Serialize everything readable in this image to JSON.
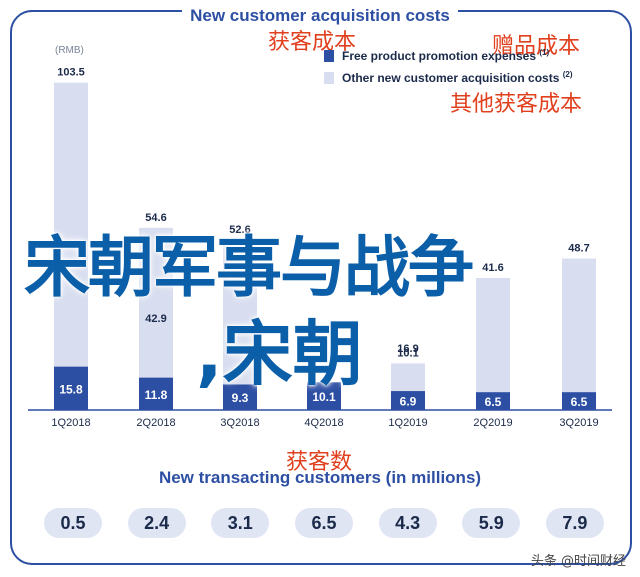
{
  "title": "New customer acquisition costs",
  "labels_cn": {
    "acq_cost": "获客成本",
    "gift_cost": "赠品成本",
    "other_cost": "其他获客成本",
    "customers": "获客数"
  },
  "unit": "(RMB)",
  "legend": [
    {
      "label": "Free product promotion expenses",
      "sup": "(1)",
      "color": "#2d4fa3"
    },
    {
      "label": "Other new customer acquisition costs",
      "sup": "(2)",
      "color": "#d8def0"
    }
  ],
  "overlay": {
    "line1": "宋朝军事与战争",
    "line2": ",宋朝"
  },
  "chart_data": {
    "type": "bar",
    "categories": [
      "1Q2018",
      "2Q2018",
      "3Q2018",
      "4Q2018",
      "1Q2019",
      "2Q2019",
      "3Q2019"
    ],
    "series": [
      {
        "name": "Free product promotion expenses",
        "values": [
          15.8,
          11.8,
          9.3,
          10.1,
          6.9,
          6.5,
          6.5
        ]
      },
      {
        "name": "Other new customer acquisition costs",
        "values": [
          103.5,
          54.6,
          52.6,
          null,
          10.1,
          41.6,
          48.7
        ]
      }
    ],
    "total_labels": [
      "103.5",
      "54.6",
      "52.6",
      "",
      "10.1",
      "41.6",
      "48.7"
    ],
    "ylim": [
      0,
      110
    ],
    "grid": false,
    "legend_position": "top-right"
  },
  "customers_title": "New transacting customers (in millions)",
  "customers": [
    "0.5",
    "2.4",
    "3.1",
    "6.5",
    "4.3",
    "5.9",
    "7.9"
  ],
  "customers_extra_label": "16.9",
  "customers_extra_label2": "42.9",
  "watermark": "头条 @时间财经",
  "colors": {
    "accent": "#2d4fa3",
    "light": "#d8def0",
    "red": "#e0401d"
  }
}
